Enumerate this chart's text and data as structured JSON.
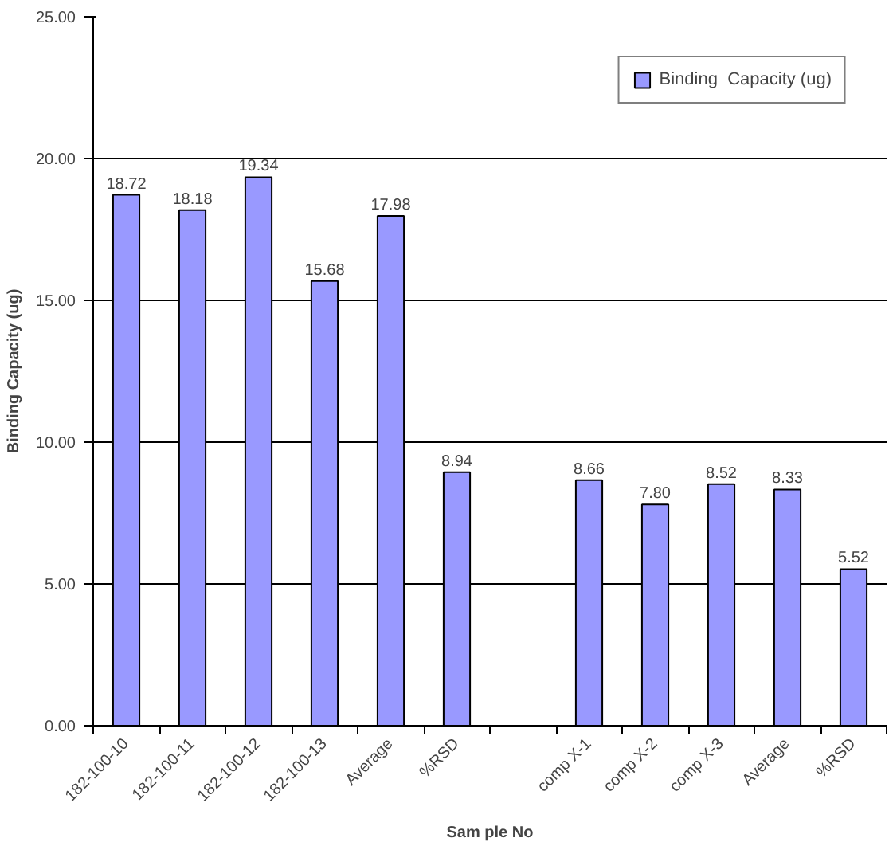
{
  "chart_data": {
    "type": "bar",
    "xlabel": "Sam ple No",
    "ylabel": "Binding Capacity (ug)",
    "categories": [
      "182-100-10",
      "182-100-11",
      "182-100-12",
      "182-100-13",
      "Average",
      "%RSD",
      null,
      "comp X-1",
      "comp X-2",
      "comp X-3",
      "Average",
      "%RSD"
    ],
    "series": [
      {
        "name": "Binding  Capacity (ug)",
        "color": "#9999ff",
        "values": [
          18.72,
          18.18,
          19.34,
          15.68,
          17.98,
          8.94,
          null,
          8.66,
          7.8,
          8.52,
          8.33,
          5.52
        ]
      }
    ],
    "value_labels": [
      "18.72",
      "18.18",
      "19.34",
      "15.68",
      "17.98",
      "8.94",
      null,
      "8.66",
      "7.80",
      "8.52",
      "8.33",
      "5.52"
    ],
    "ylim": [
      0,
      25
    ],
    "yticks": [
      {
        "value": 0,
        "label": "0.00"
      },
      {
        "value": 5,
        "label": "5.00"
      },
      {
        "value": 10,
        "label": "10.00"
      },
      {
        "value": 15,
        "label": "15.00"
      },
      {
        "value": 20,
        "label": "20.00"
      },
      {
        "value": 25,
        "label": "25.00"
      }
    ],
    "grid": "y",
    "legend": "top right"
  }
}
